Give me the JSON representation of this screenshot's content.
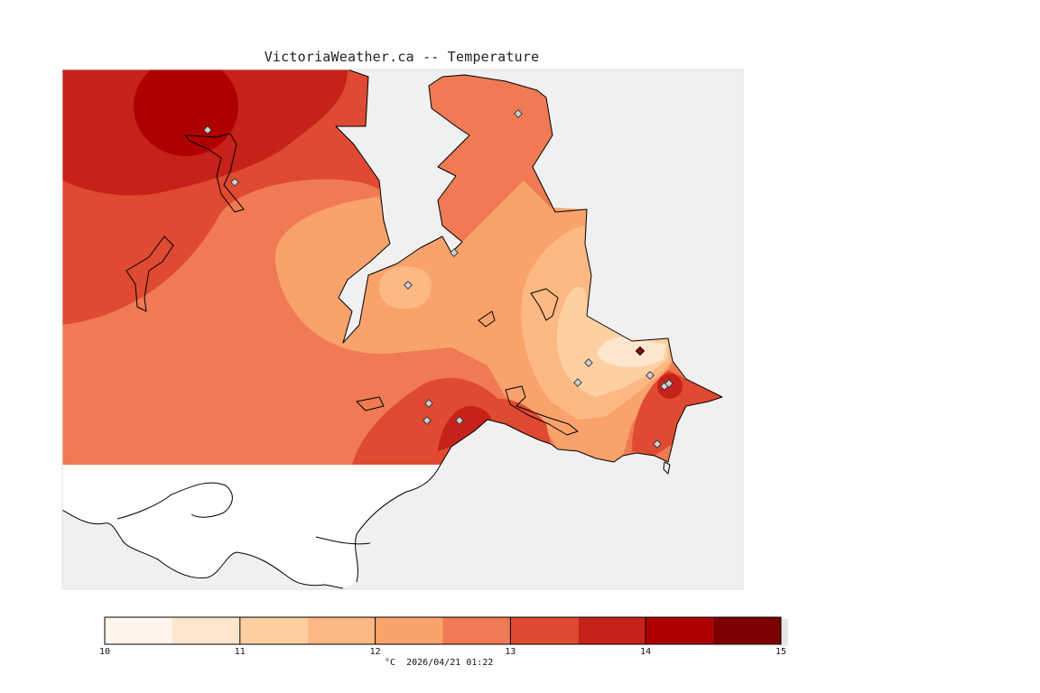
{
  "title": "VictoriaWeather.ca -- Temperature",
  "footer": {
    "unit": "°C",
    "timestamp": "2026/04/21 01:22"
  },
  "legend": {
    "min": 10,
    "max": 15,
    "ticks": [
      "10",
      "11",
      "12",
      "13",
      "14",
      "15"
    ],
    "colors": [
      "#fff5eb",
      "#fee6ce",
      "#fdd0a2",
      "#fdb883",
      "#f9a26c",
      "#f07a53",
      "#df4a32",
      "#c62219",
      "#ae0000",
      "#7c0000"
    ]
  },
  "colors": {
    "background": "#ffffff",
    "water": "#f0f0f0",
    "land_unshaded": "#ffffff",
    "coastline": "#000000",
    "station_marker": "#cfcfcf",
    "station_marker_hot": "#b00000"
  },
  "stations_count": 15
}
